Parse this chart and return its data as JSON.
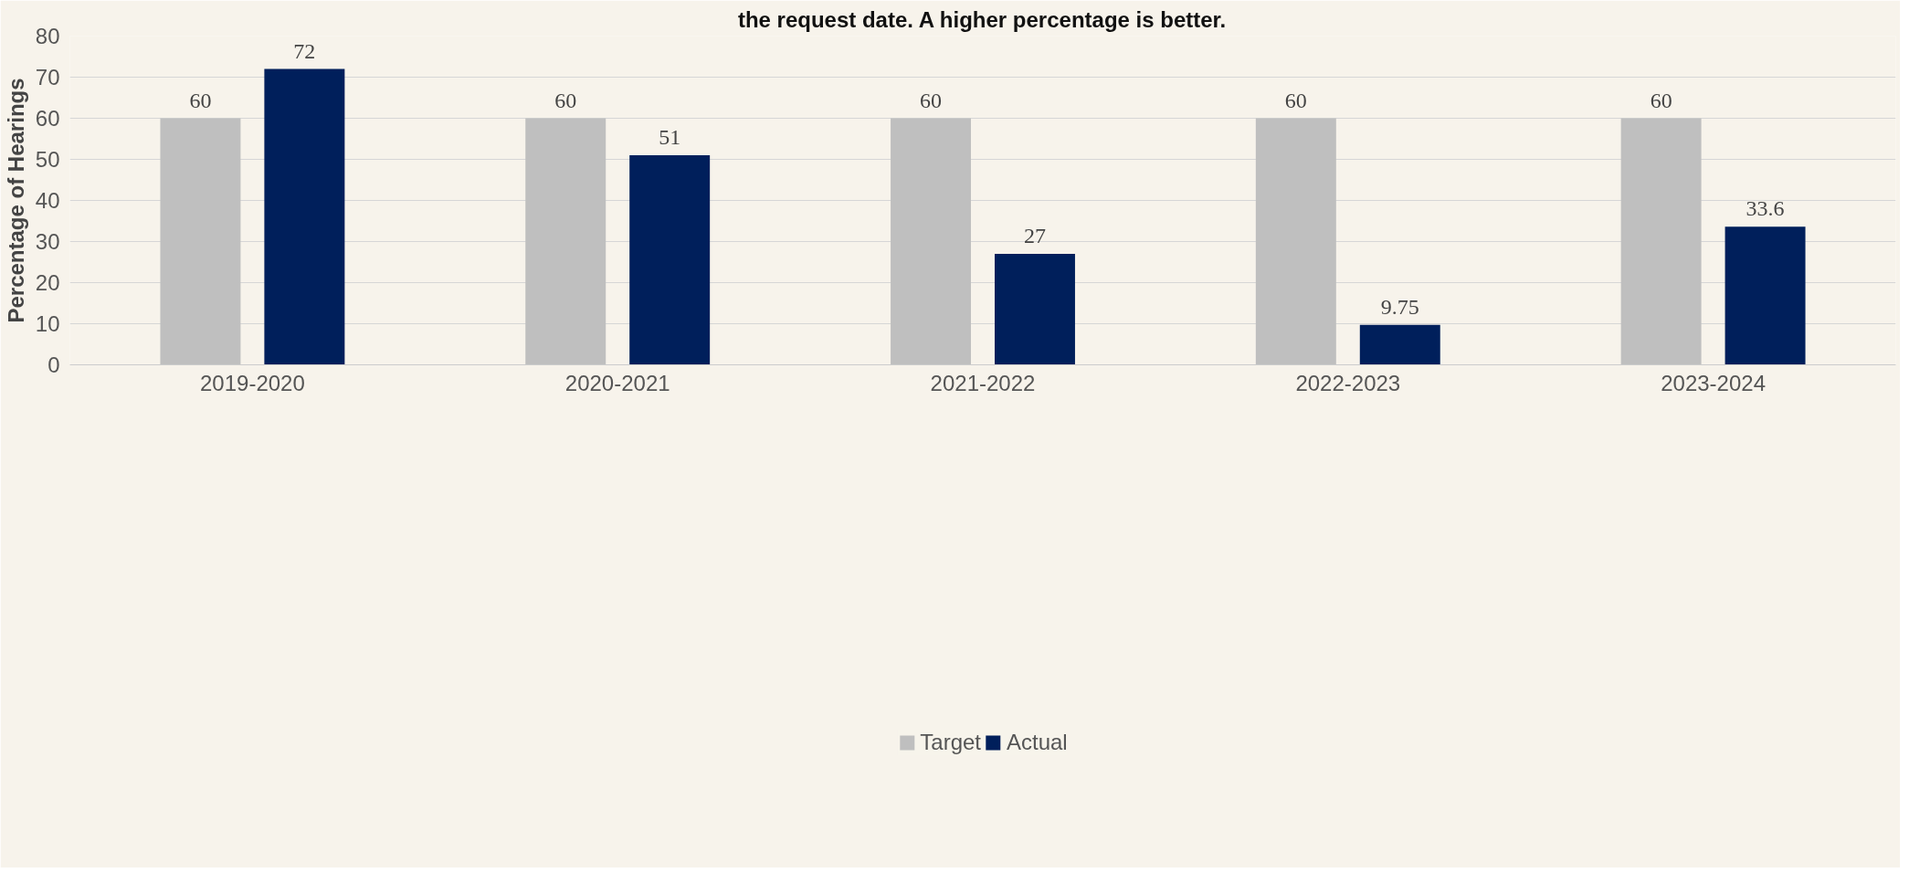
{
  "chart_data": {
    "type": "bar",
    "subtitle": "the request date. A higher percentage is better.",
    "ylabel": "Percentage of Hearings",
    "categories": [
      "2019-2020",
      "2020-2021",
      "2021-2022",
      "2022-2023",
      "2023-2024"
    ],
    "series": [
      {
        "name": "Target",
        "color": "#bfbfbf",
        "values": [
          60,
          60,
          60,
          60,
          60
        ]
      },
      {
        "name": "Actual",
        "color": "#001f5b",
        "values": [
          72,
          51,
          27,
          9.75,
          33.6
        ]
      }
    ],
    "ylim": [
      0,
      80
    ],
    "yticks": [
      0,
      10,
      20,
      30,
      40,
      50,
      60,
      70,
      80
    ],
    "grid": "y",
    "legend": "bottom",
    "data_labels": true
  }
}
